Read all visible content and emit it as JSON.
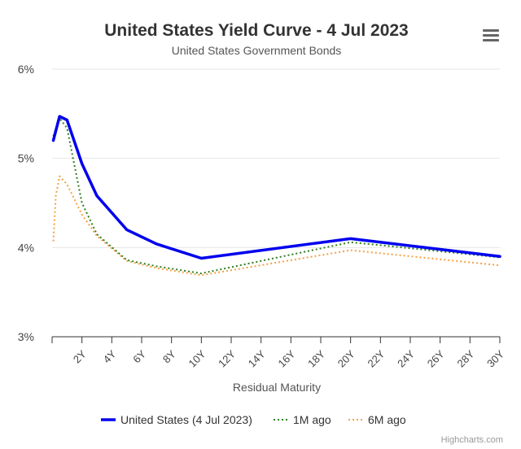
{
  "chart_data": {
    "type": "line",
    "title": "United States Yield Curve - 4 Jul 2023",
    "subtitle": "United States Government Bonds",
    "xlabel": "Residual Maturity",
    "ylabel": "",
    "ylim": [
      3,
      6
    ],
    "xlim": [
      0,
      30
    ],
    "yticks": [
      {
        "value": 3,
        "label": "3%"
      },
      {
        "value": 4,
        "label": "4%"
      },
      {
        "value": 5,
        "label": "5%"
      },
      {
        "value": 6,
        "label": "6%"
      }
    ],
    "xticks": [
      {
        "value": 2,
        "label": "2Y"
      },
      {
        "value": 4,
        "label": "4Y"
      },
      {
        "value": 6,
        "label": "6Y"
      },
      {
        "value": 8,
        "label": "8Y"
      },
      {
        "value": 10,
        "label": "10Y"
      },
      {
        "value": 12,
        "label": "12Y"
      },
      {
        "value": 14,
        "label": "14Y"
      },
      {
        "value": 16,
        "label": "16Y"
      },
      {
        "value": 18,
        "label": "18Y"
      },
      {
        "value": 20,
        "label": "20Y"
      },
      {
        "value": 22,
        "label": "22Y"
      },
      {
        "value": 24,
        "label": "24Y"
      },
      {
        "value": 26,
        "label": "26Y"
      },
      {
        "value": 28,
        "label": "28Y"
      },
      {
        "value": 30,
        "label": "30Y"
      }
    ],
    "grid": "horizontal",
    "legend_position": "bottom",
    "series": [
      {
        "name": "United States (4 Jul 2023)",
        "color": "#0000ee",
        "style": "solid",
        "points": [
          [
            0.083,
            5.2
          ],
          [
            0.25,
            5.31
          ],
          [
            0.5,
            5.47
          ],
          [
            1,
            5.43
          ],
          [
            2,
            4.94
          ],
          [
            3,
            4.58
          ],
          [
            5,
            4.2
          ],
          [
            7,
            4.04
          ],
          [
            10,
            3.88
          ],
          [
            20,
            4.1
          ],
          [
            30,
            3.9
          ]
        ]
      },
      {
        "name": "1M ago",
        "color": "#2e7d1e",
        "style": "dotted",
        "points": [
          [
            0.083,
            5.25
          ],
          [
            0.25,
            5.33
          ],
          [
            0.5,
            5.45
          ],
          [
            1,
            5.34
          ],
          [
            2,
            4.5
          ],
          [
            3,
            4.15
          ],
          [
            5,
            3.86
          ],
          [
            7,
            3.79
          ],
          [
            10,
            3.71
          ],
          [
            20,
            4.06
          ],
          [
            30,
            3.89
          ]
        ]
      },
      {
        "name": "6M ago",
        "color": "#f5a142",
        "style": "dotted",
        "points": [
          [
            0.083,
            4.07
          ],
          [
            0.25,
            4.58
          ],
          [
            0.5,
            4.8
          ],
          [
            1,
            4.71
          ],
          [
            2,
            4.37
          ],
          [
            3,
            4.13
          ],
          [
            5,
            3.85
          ],
          [
            7,
            3.77
          ],
          [
            10,
            3.69
          ],
          [
            20,
            3.97
          ],
          [
            30,
            3.8
          ]
        ]
      }
    ]
  },
  "menu": {
    "icon": "hamburger-menu-icon"
  },
  "credits": "Highcharts.com"
}
